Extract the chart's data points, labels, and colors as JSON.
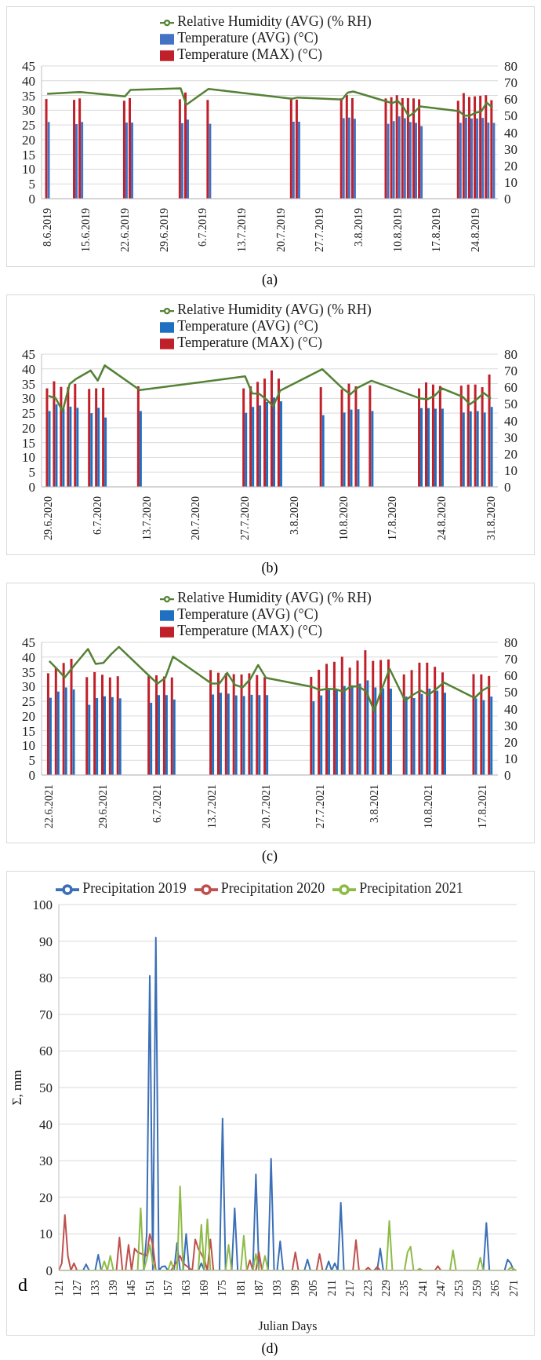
{
  "chart_data": [
    {
      "type": "bar",
      "x": [
        "2019-06-08",
        "2019-06-13",
        "2019-06-14",
        "2019-06-22",
        "2019-06-23",
        "2019-07-02",
        "2019-07-03",
        "2019-07-07",
        "2019-07-22",
        "2019-07-23",
        "2019-07-31",
        "2019-08-01",
        "2019-08-02",
        "2019-08-08",
        "2019-08-09",
        "2019-08-10",
        "2019-08-11",
        "2019-08-12",
        "2019-08-13",
        "2019-08-14",
        "2019-08-21",
        "2019-08-22",
        "2019-08-23",
        "2019-08-24",
        "2019-08-25",
        "2019-08-26",
        "2019-08-27"
      ],
      "xlim": [
        "2019-06-07",
        "2019-08-28"
      ],
      "xticks": [
        {
          "value": "2019-06-08",
          "label": "8.6.2019"
        },
        {
          "value": "2019-06-15",
          "label": "15.6.2019"
        },
        {
          "value": "2019-06-22",
          "label": "22.6.2019"
        },
        {
          "value": "2019-06-29",
          "label": "29.6.2019"
        },
        {
          "value": "2019-07-06",
          "label": "6.7.2019"
        },
        {
          "value": "2019-07-13",
          "label": "13.7.2019"
        },
        {
          "value": "2019-07-20",
          "label": "20.7.2019"
        },
        {
          "value": "2019-07-27",
          "label": "27.7.2019"
        },
        {
          "value": "2019-08-03",
          "label": "3.8.2019"
        },
        {
          "value": "2019-08-10",
          "label": "10.8.2019"
        },
        {
          "value": "2019-08-17",
          "label": "17.8.2019"
        },
        {
          "value": "2019-08-24",
          "label": "24.8.2019"
        }
      ],
      "ylim": [
        0,
        45
      ],
      "yticks": [
        0,
        5,
        10,
        15,
        20,
        25,
        30,
        35,
        40,
        45
      ],
      "y2lim": [
        0,
        80
      ],
      "y2ticks": [
        0,
        10,
        20,
        30,
        40,
        50,
        60,
        70,
        80
      ],
      "grid": "y",
      "legend": "top",
      "marker": "none",
      "annotations": [
        "(a)"
      ],
      "series": [
        {
          "name": "Temperature (MAX) (°C)",
          "color": "#c0202a",
          "values": [
            33.8,
            33.5,
            34,
            33.2,
            34.1,
            33.7,
            36,
            33.5,
            33.8,
            33.6,
            34,
            35.1,
            34.1,
            34,
            34.4,
            35.1,
            34.1,
            34.1,
            34,
            33.7,
            33.2,
            35.8,
            34.5,
            34.7,
            34.9,
            35.1,
            33.4
          ]
        },
        {
          "name": "Temperature (AVG) (°C)",
          "color": "#4472c4",
          "values": [
            26,
            25.3,
            26,
            25.8,
            25.8,
            25.6,
            26.8,
            25.4,
            26.1,
            26.1,
            27.3,
            27.5,
            27.1,
            25.4,
            26.3,
            27.9,
            27.3,
            26,
            25.7,
            24.6,
            25.7,
            27.5,
            27.2,
            27.2,
            27.4,
            25.8,
            25.7
          ]
        },
        {
          "name": "Relative Humidity (AVG) (% RH)",
          "type": "line",
          "axis": "y2",
          "color": "#548235",
          "values": [
            63.2,
            64.1,
            64.3,
            61.7,
            65.6,
            66.5,
            56.6,
            66.2,
            60.2,
            61,
            59.8,
            63.9,
            64.6,
            58.6,
            57.6,
            59,
            55.2,
            49.6,
            52.1,
            55.6,
            52.8,
            50.1,
            50.1,
            51.8,
            52.5,
            57.9,
            55
          ]
        }
      ]
    },
    {
      "type": "bar",
      "x": [
        "2020-06-29",
        "2020-06-30",
        "2020-07-01",
        "2020-07-02",
        "2020-07-03",
        "2020-07-05",
        "2020-07-06",
        "2020-07-07",
        "2020-07-12",
        "2020-07-27",
        "2020-07-28",
        "2020-07-29",
        "2020-07-30",
        "2020-07-31",
        "2020-08-01",
        "2020-08-07",
        "2020-08-10",
        "2020-08-11",
        "2020-08-12",
        "2020-08-14",
        "2020-08-21",
        "2020-08-22",
        "2020-08-23",
        "2020-08-24",
        "2020-08-27",
        "2020-08-28",
        "2020-08-29",
        "2020-08-30",
        "2020-08-31"
      ],
      "xlim": [
        "2020-06-28",
        "2020-09-01"
      ],
      "xticks": [
        {
          "value": "2020-06-29",
          "label": "29.6.2020"
        },
        {
          "value": "2020-07-06",
          "label": "6.7.2020"
        },
        {
          "value": "2020-07-13",
          "label": "13.7.2020"
        },
        {
          "value": "2020-07-20",
          "label": "20.7.2020"
        },
        {
          "value": "2020-07-27",
          "label": "27.7.2020"
        },
        {
          "value": "2020-08-03",
          "label": "3.8.2020"
        },
        {
          "value": "2020-08-10",
          "label": "10.8.2020"
        },
        {
          "value": "2020-08-17",
          "label": "17.8.2020"
        },
        {
          "value": "2020-08-24",
          "label": "24.8.2020"
        },
        {
          "value": "2020-08-31",
          "label": "31.8.2020"
        }
      ],
      "ylim": [
        0,
        45
      ],
      "yticks": [
        0,
        5,
        10,
        15,
        20,
        25,
        30,
        35,
        40,
        45
      ],
      "y2lim": [
        0,
        80
      ],
      "y2ticks": [
        0,
        10,
        20,
        30,
        40,
        50,
        60,
        70,
        80
      ],
      "grid": "y",
      "legend": "top",
      "marker": "none",
      "annotations": [
        "(b)"
      ],
      "series": [
        {
          "name": "Temperature (MAX) (°C)",
          "color": "#c0202a",
          "values": [
            33.4,
            35.8,
            33.9,
            33.8,
            34.9,
            33.2,
            33.4,
            33.6,
            34.1,
            33.4,
            34.1,
            35.6,
            36.7,
            39.5,
            36.7,
            33.8,
            33,
            35,
            34.1,
            34.4,
            33.4,
            35.4,
            34.7,
            34.2,
            34.3,
            34.7,
            34.7,
            33.8,
            38.1
          ]
        },
        {
          "name": "Temperature (AVG) (°C)",
          "color": "#1f70c1",
          "values": [
            25.7,
            28,
            26.5,
            27.2,
            26.8,
            25,
            26.8,
            23.5,
            25.7,
            25.1,
            27.1,
            27.6,
            28.8,
            30.3,
            29,
            24.3,
            25.2,
            26.2,
            26.3,
            25.7,
            26.7,
            26.7,
            26.5,
            26.5,
            25.2,
            25.6,
            25.7,
            25.2,
            27.1
          ]
        },
        {
          "name": "Relative Humidity (AVG) (% RH)",
          "type": "line",
          "axis": "y2",
          "color": "#548235",
          "values": [
            54.8,
            53.5,
            45.6,
            62,
            65.3,
            70.1,
            64,
            73.2,
            58.3,
            66.6,
            56.3,
            56.1,
            52.8,
            48.6,
            58.1,
            70.9,
            58.9,
            55.8,
            59.7,
            64,
            53.2,
            52.8,
            55,
            59.4,
            54.3,
            49.7,
            52.8,
            56.6,
            53.2
          ]
        }
      ]
    },
    {
      "type": "bar",
      "x": [
        "2021-06-22",
        "2021-06-23",
        "2021-06-24",
        "2021-06-25",
        "2021-06-27",
        "2021-06-28",
        "2021-06-29",
        "2021-06-30",
        "2021-07-01",
        "2021-07-05",
        "2021-07-06",
        "2021-07-07",
        "2021-07-08",
        "2021-07-13",
        "2021-07-14",
        "2021-07-15",
        "2021-07-16",
        "2021-07-17",
        "2021-07-18",
        "2021-07-19",
        "2021-07-20",
        "2021-07-26",
        "2021-07-27",
        "2021-07-28",
        "2021-07-29",
        "2021-07-30",
        "2021-07-31",
        "2021-08-01",
        "2021-08-02",
        "2021-08-03",
        "2021-08-04",
        "2021-08-05",
        "2021-08-07",
        "2021-08-08",
        "2021-08-09",
        "2021-08-10",
        "2021-08-11",
        "2021-08-12",
        "2021-08-16",
        "2021-08-17",
        "2021-08-18"
      ],
      "xlim": [
        "2021-06-21",
        "2021-08-19"
      ],
      "xticks": [
        {
          "value": "2021-06-22",
          "label": "22.6.2021"
        },
        {
          "value": "2021-06-29",
          "label": "29.6.2021"
        },
        {
          "value": "2021-07-06",
          "label": "6.7.2021"
        },
        {
          "value": "2021-07-13",
          "label": "13.7.2021"
        },
        {
          "value": "2021-07-20",
          "label": "20.7.2021"
        },
        {
          "value": "2021-07-27",
          "label": "27.7.2021"
        },
        {
          "value": "2021-08-03",
          "label": "3.8.2021"
        },
        {
          "value": "2021-08-10",
          "label": "10.8.2021"
        },
        {
          "value": "2021-08-17",
          "label": "17.8.2021"
        }
      ],
      "ylim": [
        0,
        45
      ],
      "yticks": [
        0,
        5,
        10,
        15,
        20,
        25,
        30,
        35,
        40,
        45
      ],
      "y2lim": [
        0,
        80
      ],
      "y2ticks": [
        0,
        10,
        20,
        30,
        40,
        50,
        60,
        70,
        80
      ],
      "grid": "y",
      "legend": "top",
      "marker": "none",
      "annotations": [
        "(c)"
      ],
      "series": [
        {
          "name": "Temperature (MAX) (°C)",
          "color": "#c0202a",
          "values": [
            34.5,
            36.4,
            38,
            39.4,
            33.2,
            34.9,
            34,
            33.1,
            33.5,
            33.6,
            33.8,
            33.4,
            33.1,
            35.6,
            34.7,
            34.5,
            34.2,
            34.1,
            34.5,
            33.9,
            33.2,
            33.3,
            35.7,
            37.7,
            38.4,
            40.1,
            36.4,
            38.8,
            42.3,
            38.7,
            39,
            39.2,
            34.1,
            35.6,
            38.1,
            38.1,
            36.7,
            34.8,
            34.2,
            34.1,
            33.6
          ]
        },
        {
          "name": "Temperature (AVG) (°C)",
          "color": "#1f70c1",
          "values": [
            26.2,
            28.3,
            29.7,
            29,
            23.8,
            26.1,
            26.7,
            26.4,
            26,
            24.5,
            27.1,
            27.1,
            25.6,
            27.3,
            27.9,
            27.6,
            27,
            26.8,
            27.2,
            27.1,
            27.1,
            25,
            27,
            28.9,
            29,
            30.2,
            30,
            31,
            32.1,
            29.7,
            29.4,
            29.3,
            26.6,
            26.1,
            27.5,
            29.3,
            28.6,
            27.9,
            26,
            25.4,
            26.6
          ]
        },
        {
          "name": "Relative Humidity (AVG) (% RH)",
          "type": "line",
          "axis": "y2",
          "color": "#548235",
          "values": [
            68.7,
            64,
            58.8,
            64.7,
            76,
            67,
            67.6,
            72.8,
            77.2,
            59.4,
            55.1,
            58.6,
            71.4,
            55.1,
            55.1,
            61.6,
            54.4,
            52.8,
            57.9,
            66.3,
            58.6,
            53.1,
            51.2,
            52,
            51.7,
            50.3,
            53.5,
            53.4,
            50.3,
            38.7,
            52,
            64,
            44.9,
            48.3,
            51,
            48.3,
            51.7,
            55.8,
            46.5,
            51,
            53.5
          ]
        }
      ]
    },
    {
      "type": "line",
      "xlabel": "Julian Days",
      "ylabel": "Σ, mm",
      "xlim": [
        121,
        272
      ],
      "xticks": [
        121,
        127,
        133,
        139,
        145,
        151,
        157,
        163,
        169,
        175,
        181,
        187,
        193,
        199,
        205,
        211,
        217,
        223,
        229,
        235,
        241,
        247,
        253,
        259,
        265,
        271
      ],
      "ylim": [
        0,
        100
      ],
      "yticks": [
        0,
        10,
        20,
        30,
        40,
        50,
        60,
        70,
        80,
        90,
        100
      ],
      "grid": "y",
      "legend": "top",
      "marker": "none",
      "annotations": [
        "d",
        "(d)"
      ],
      "series": [
        {
          "name": "Precipitation 2019",
          "color": "#3b6fb6",
          "x": [
            121,
            129,
            130,
            131,
            133,
            134,
            135,
            149,
            150,
            151,
            152,
            153,
            154,
            155,
            156,
            157,
            159,
            160,
            161,
            162,
            163,
            164,
            167,
            168,
            169,
            174,
            175,
            176,
            178,
            179,
            180,
            185,
            186,
            187,
            190,
            191,
            192,
            193,
            194,
            195,
            202,
            203,
            204,
            209,
            210,
            211,
            212,
            213,
            214,
            215,
            226,
            227,
            228,
            261,
            262,
            263,
            268,
            269,
            270,
            271,
            272
          ],
          "values": [
            0,
            0,
            1.7,
            0,
            0,
            4.3,
            0,
            0,
            10,
            80.5,
            0,
            91,
            0,
            1,
            1.2,
            0,
            0,
            7.5,
            0,
            0,
            10,
            0,
            0,
            2,
            0,
            0,
            41.5,
            0,
            0,
            17,
            0,
            0,
            26.3,
            0,
            0,
            30.5,
            0,
            0,
            8,
            0,
            0,
            3,
            0,
            0,
            2.5,
            0,
            2,
            0,
            18.5,
            0,
            0,
            6,
            0,
            0,
            13,
            0,
            0,
            3,
            2,
            0,
            0
          ]
        },
        {
          "name": "Precipitation 2020",
          "color": "#c0504d",
          "x": [
            121,
            122,
            123,
            124,
            125,
            126,
            127,
            140,
            141,
            142,
            143,
            144,
            145,
            146,
            147,
            150,
            151,
            152,
            153,
            158,
            160,
            161,
            162,
            165,
            166,
            167,
            169,
            170,
            171,
            172,
            183,
            184,
            185,
            186,
            187,
            188,
            198,
            199,
            200,
            206,
            207,
            208,
            218,
            219,
            220,
            222,
            223,
            224,
            225,
            226,
            227,
            245,
            246,
            247,
            272
          ],
          "values": [
            0,
            2,
            15.2,
            4,
            0,
            2,
            0,
            0,
            9,
            0,
            0,
            7,
            0,
            6,
            5,
            4,
            10,
            7,
            0,
            0,
            2.5,
            4,
            2,
            0,
            8.5,
            6,
            3,
            0,
            8.5,
            0,
            0,
            2.8,
            0,
            0,
            5,
            0,
            0,
            5,
            0,
            0,
            4.5,
            0,
            0,
            8.3,
            0,
            0,
            0.8,
            0,
            0,
            1,
            0,
            0,
            1.2,
            0,
            0
          ]
        },
        {
          "name": "Precipitation 2021",
          "color": "#8dbb45",
          "x": [
            121,
            135,
            136,
            137,
            138,
            139,
            147,
            148,
            149,
            150,
            151,
            152,
            153,
            157,
            158,
            159,
            160,
            161,
            162,
            167,
            168,
            169,
            170,
            171,
            176,
            177,
            178,
            181,
            182,
            183,
            185,
            186,
            187,
            188,
            189,
            190,
            229,
            230,
            231,
            235,
            236,
            237,
            238,
            239,
            240,
            241,
            250,
            251,
            252,
            259,
            260,
            261,
            269,
            270,
            272
          ],
          "values": [
            0,
            0,
            2.5,
            0,
            4,
            0,
            0,
            17,
            0,
            3,
            7,
            2,
            0,
            0,
            2.5,
            0,
            0,
            23,
            0,
            0,
            12.5,
            0,
            14,
            0,
            0,
            7,
            0,
            0,
            9.5,
            0,
            0,
            4.5,
            0,
            0,
            4,
            0,
            0,
            13.5,
            0,
            0,
            5,
            6.5,
            0,
            0,
            0.5,
            0,
            0,
            5.5,
            0,
            0,
            3.5,
            0,
            0,
            0.8,
            0
          ]
        }
      ]
    }
  ]
}
